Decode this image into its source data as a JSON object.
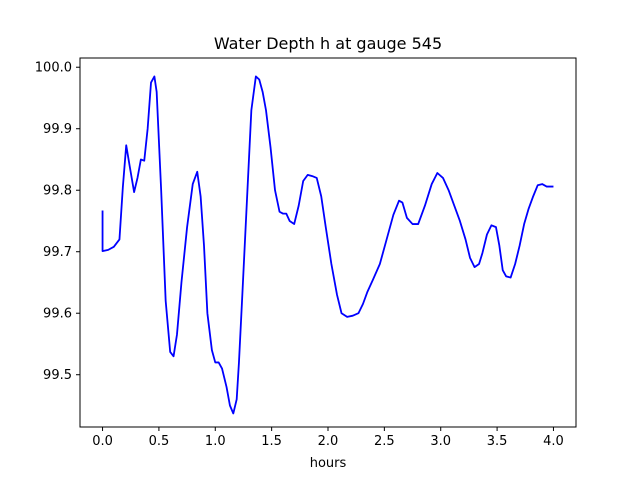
{
  "chart_data": {
    "type": "line",
    "title": "Water Depth h at gauge 545",
    "xlabel": "hours",
    "ylabel": "",
    "xlim": [
      -0.2,
      4.2
    ],
    "ylim": [
      99.415,
      100.015
    ],
    "xticks": [
      0.0,
      0.5,
      1.0,
      1.5,
      2.0,
      2.5,
      3.0,
      3.5,
      4.0
    ],
    "xtick_labels": [
      "0.0",
      "0.5",
      "1.0",
      "1.5",
      "2.0",
      "2.5",
      "3.0",
      "3.5",
      "4.0"
    ],
    "yticks": [
      99.5,
      99.6,
      99.7,
      99.8,
      99.9,
      100.0
    ],
    "ytick_labels": [
      "99.5",
      "99.6",
      "99.7",
      "99.8",
      "99.9",
      "100.0"
    ],
    "grid": false,
    "series": [
      {
        "color": "#0000ff",
        "x": [
          0.0,
          0.0,
          0.05,
          0.1,
          0.15,
          0.18,
          0.21,
          0.24,
          0.28,
          0.31,
          0.34,
          0.37,
          0.4,
          0.43,
          0.46,
          0.48,
          0.52,
          0.56,
          0.6,
          0.63,
          0.66,
          0.7,
          0.75,
          0.8,
          0.84,
          0.87,
          0.9,
          0.93,
          0.97,
          1.0,
          1.03,
          1.06,
          1.1,
          1.13,
          1.16,
          1.19,
          1.21,
          1.24,
          1.28,
          1.32,
          1.36,
          1.39,
          1.42,
          1.45,
          1.49,
          1.53,
          1.57,
          1.6,
          1.63,
          1.66,
          1.7,
          1.74,
          1.78,
          1.82,
          1.86,
          1.9,
          1.94,
          1.98,
          2.03,
          2.08,
          2.12,
          2.17,
          2.22,
          2.27,
          2.31,
          2.35,
          2.4,
          2.46,
          2.52,
          2.58,
          2.63,
          2.66,
          2.7,
          2.75,
          2.8,
          2.86,
          2.92,
          2.97,
          3.02,
          3.07,
          3.12,
          3.17,
          3.22,
          3.26,
          3.3,
          3.34,
          3.37,
          3.41,
          3.45,
          3.49,
          3.52,
          3.55,
          3.58,
          3.62,
          3.66,
          3.7,
          3.74,
          3.78,
          3.82,
          3.86,
          3.9,
          3.94,
          3.97,
          4.0
        ],
        "y": [
          99.767,
          99.701,
          99.703,
          99.708,
          99.72,
          99.805,
          99.873,
          99.84,
          99.797,
          99.82,
          99.85,
          99.848,
          99.9,
          99.975,
          99.985,
          99.96,
          99.8,
          99.62,
          99.537,
          99.53,
          99.565,
          99.65,
          99.74,
          99.81,
          99.83,
          99.79,
          99.71,
          99.6,
          99.54,
          99.52,
          99.52,
          99.51,
          99.48,
          99.45,
          99.437,
          99.46,
          99.52,
          99.63,
          99.78,
          99.93,
          99.985,
          99.98,
          99.96,
          99.93,
          99.87,
          99.8,
          99.765,
          99.762,
          99.762,
          99.75,
          99.745,
          99.775,
          99.815,
          99.825,
          99.823,
          99.82,
          99.79,
          99.74,
          99.68,
          99.63,
          99.6,
          99.594,
          99.596,
          99.6,
          99.615,
          99.635,
          99.655,
          99.68,
          99.72,
          99.76,
          99.783,
          99.78,
          99.755,
          99.745,
          99.745,
          99.775,
          99.81,
          99.828,
          99.82,
          99.8,
          99.775,
          99.75,
          99.72,
          99.69,
          99.675,
          99.68,
          99.698,
          99.728,
          99.743,
          99.74,
          99.71,
          99.67,
          99.66,
          99.658,
          99.68,
          99.71,
          99.745,
          99.77,
          99.79,
          99.808,
          99.81,
          99.806,
          99.806,
          99.806
        ]
      }
    ]
  }
}
